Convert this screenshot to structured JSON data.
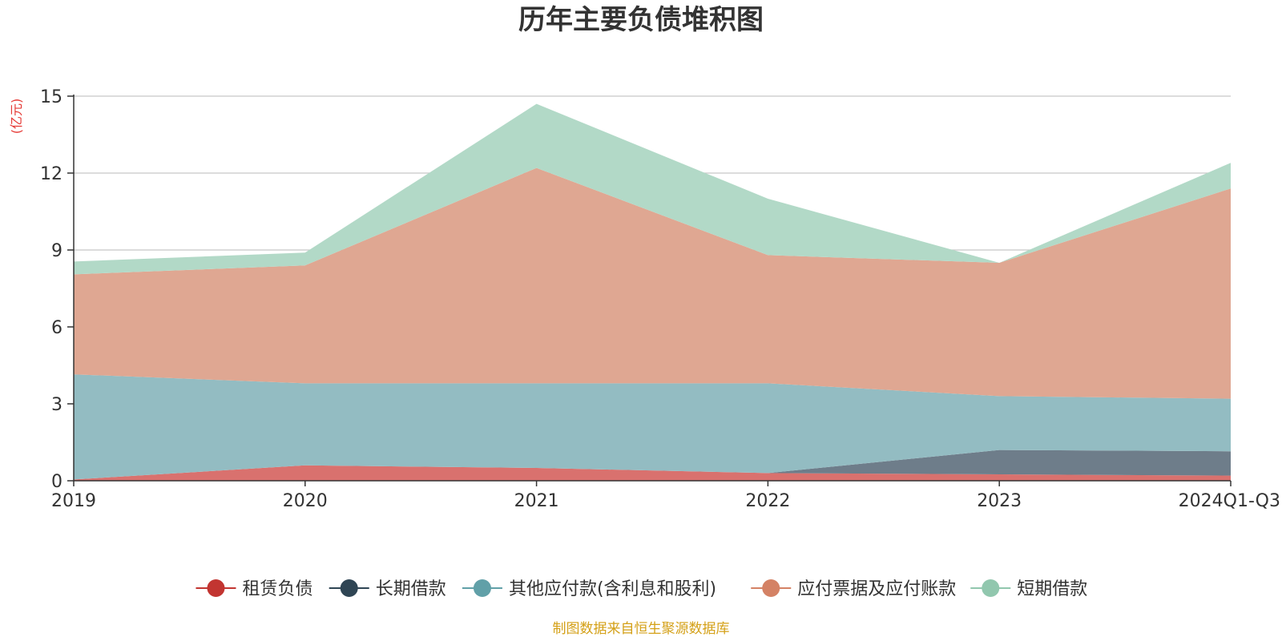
{
  "title": "历年主要负债堆积图",
  "unit_label": "(亿元)",
  "source_note": "制图数据来自恒生聚源数据库",
  "colors": {
    "title": "#333333",
    "unit": "#e53935",
    "source": "#d4a017",
    "axis": "#333333",
    "grid": "#c8c8c8",
    "text": "#333333"
  },
  "chart_data": {
    "type": "area",
    "stacked": true,
    "title": "历年主要负债堆积图",
    "ylabel": "(亿元)",
    "categories": [
      "2019",
      "2020",
      "2021",
      "2022",
      "2023",
      "2024Q1-Q3"
    ],
    "ylim": [
      0,
      15
    ],
    "yticks": [
      0,
      3,
      6,
      9,
      12,
      15
    ],
    "grid": true,
    "legend_position": "bottom",
    "series": [
      {
        "name": "租赁负债",
        "values": [
          0.05,
          0.6,
          0.5,
          0.3,
          0.25,
          0.2
        ],
        "color": "#d9716e",
        "legend_color": "#c23531"
      },
      {
        "name": "长期借款",
        "values": [
          0.0,
          0.0,
          0.0,
          0.0,
          0.95,
          0.95
        ],
        "color": "#6e7d8a",
        "legend_color": "#2f4554"
      },
      {
        "name": "其他应付款(含利息和股利)",
        "values": [
          4.1,
          3.2,
          3.3,
          3.5,
          2.1,
          2.05
        ],
        "color": "#93bcc2",
        "legend_color": "#61a0a8"
      },
      {
        "name": "应付票据及应付账款",
        "values": [
          3.9,
          4.6,
          8.4,
          5.0,
          5.2,
          8.2
        ],
        "color": "#dfa792",
        "legend_color": "#d48265"
      },
      {
        "name": "短期借款",
        "values": [
          0.5,
          0.5,
          2.5,
          2.2,
          0.0,
          1.0
        ],
        "color": "#b2d9c7",
        "legend_color": "#91c7ae"
      }
    ]
  }
}
